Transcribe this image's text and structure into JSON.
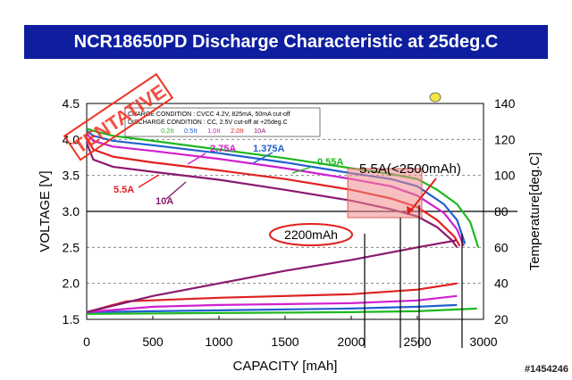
{
  "chart_data": {
    "type": "line",
    "title": "NCR18650PD Discharge Characteristic at 25deg.C",
    "xlabel": "CAPACITY [mAh]",
    "ylabel": "VOLTAGE [V]",
    "y2label": "Temperature[deg.C]",
    "xlim": [
      0,
      3000
    ],
    "ylim": [
      1.5,
      4.5
    ],
    "y2lim": [
      20,
      140
    ],
    "x_ticks": [
      "0",
      "500",
      "1000",
      "1500",
      "2000",
      "2500",
      "3000"
    ],
    "y_ticks": [
      "1.5",
      "2.0",
      "2.5",
      "3.0",
      "3.5",
      "4.0",
      "4.5"
    ],
    "y2_ticks": [
      "20",
      "40",
      "60",
      "80",
      "100",
      "120",
      "140"
    ],
    "grid": "dashed horizontal",
    "conditions": {
      "charge": "CHARGE CONDITION       : CVCC 4.2V, 825mA, 50mA cut-off",
      "discharge": "DISCHARGE CONDITION : CC,     2.5V cut-off at +25deg.C"
    },
    "legend": [
      {
        "label": "0.2It",
        "color": "#1fb81f"
      },
      {
        "label": "0.5It",
        "color": "#2060d0"
      },
      {
        "label": "1.0It",
        "color": "#d020d0"
      },
      {
        "label": "2.0It",
        "color": "#e02020"
      },
      {
        "label": "10A",
        "color": "#8a1a6e"
      }
    ],
    "voltage_series": [
      {
        "name": "0.55A",
        "color": "#1fb81f",
        "points": [
          [
            0,
            4.15
          ],
          [
            50,
            4.12
          ],
          [
            200,
            4.05
          ],
          [
            500,
            3.98
          ],
          [
            1000,
            3.86
          ],
          [
            1500,
            3.74
          ],
          [
            2000,
            3.6
          ],
          [
            2300,
            3.52
          ],
          [
            2500,
            3.45
          ],
          [
            2650,
            3.3
          ],
          [
            2800,
            3.1
          ],
          [
            2900,
            2.85
          ],
          [
            2960,
            2.5
          ]
        ]
      },
      {
        "name": "1.375A",
        "color": "#2060d0",
        "points": [
          [
            0,
            4.12
          ],
          [
            50,
            4.05
          ],
          [
            200,
            3.98
          ],
          [
            500,
            3.92
          ],
          [
            1000,
            3.81
          ],
          [
            1500,
            3.68
          ],
          [
            2000,
            3.53
          ],
          [
            2300,
            3.45
          ],
          [
            2500,
            3.35
          ],
          [
            2700,
            3.1
          ],
          [
            2800,
            2.88
          ],
          [
            2860,
            2.55
          ]
        ]
      },
      {
        "name": "2.75A",
        "color": "#d020d0",
        "points": [
          [
            0,
            4.08
          ],
          [
            50,
            3.98
          ],
          [
            200,
            3.9
          ],
          [
            500,
            3.84
          ],
          [
            1000,
            3.73
          ],
          [
            1500,
            3.6
          ],
          [
            2000,
            3.45
          ],
          [
            2300,
            3.35
          ],
          [
            2500,
            3.22
          ],
          [
            2700,
            2.98
          ],
          [
            2800,
            2.75
          ],
          [
            2850,
            2.52
          ]
        ]
      },
      {
        "name": "5.5A",
        "color": "#e02020",
        "points": [
          [
            0,
            4.02
          ],
          [
            50,
            3.86
          ],
          [
            200,
            3.76
          ],
          [
            500,
            3.68
          ],
          [
            1000,
            3.57
          ],
          [
            1500,
            3.45
          ],
          [
            2000,
            3.3
          ],
          [
            2300,
            3.18
          ],
          [
            2500,
            3.06
          ],
          [
            2650,
            2.88
          ],
          [
            2780,
            2.65
          ],
          [
            2820,
            2.52
          ]
        ]
      },
      {
        "name": "10A",
        "color": "#8a1a6e",
        "points": [
          [
            0,
            3.95
          ],
          [
            50,
            3.72
          ],
          [
            200,
            3.62
          ],
          [
            500,
            3.55
          ],
          [
            1000,
            3.44
          ],
          [
            1500,
            3.3
          ],
          [
            2000,
            3.15
          ],
          [
            2300,
            3.03
          ],
          [
            2500,
            2.93
          ],
          [
            2650,
            2.78
          ],
          [
            2760,
            2.6
          ],
          [
            2800,
            2.5
          ]
        ]
      }
    ],
    "temperature_series": [
      {
        "name": "0.55A",
        "color": "#1fb81f",
        "points": [
          [
            0,
            23
          ],
          [
            1000,
            23.5
          ],
          [
            2000,
            24
          ],
          [
            2500,
            24.5
          ],
          [
            2800,
            25.5
          ],
          [
            2950,
            26
          ]
        ]
      },
      {
        "name": "1.375A",
        "color": "#2060d0",
        "points": [
          [
            0,
            24
          ],
          [
            1000,
            25
          ],
          [
            2000,
            26
          ],
          [
            2500,
            27
          ],
          [
            2800,
            28
          ]
        ]
      },
      {
        "name": "2.75A",
        "color": "#d020d0",
        "points": [
          [
            0,
            24
          ],
          [
            500,
            27
          ],
          [
            1000,
            28
          ],
          [
            1500,
            28.5
          ],
          [
            2000,
            29
          ],
          [
            2500,
            30.5
          ],
          [
            2800,
            33
          ]
        ]
      },
      {
        "name": "5.5A",
        "color": "#e02020",
        "points": [
          [
            0,
            24
          ],
          [
            300,
            30
          ],
          [
            1000,
            32
          ],
          [
            2000,
            34
          ],
          [
            2500,
            36.5
          ],
          [
            2800,
            40
          ]
        ]
      },
      {
        "name": "10A",
        "color": "#8a1a6e",
        "points": [
          [
            0,
            24
          ],
          [
            500,
            33
          ],
          [
            1000,
            40
          ],
          [
            1500,
            47
          ],
          [
            2000,
            53
          ],
          [
            2500,
            60
          ],
          [
            2800,
            64
          ]
        ]
      }
    ],
    "annotations": {
      "stamp": "TENTATIVE",
      "callout": "5.5A(<2500mAh)",
      "capacity_note": "2200mAh"
    },
    "watermark": "#1454246"
  }
}
